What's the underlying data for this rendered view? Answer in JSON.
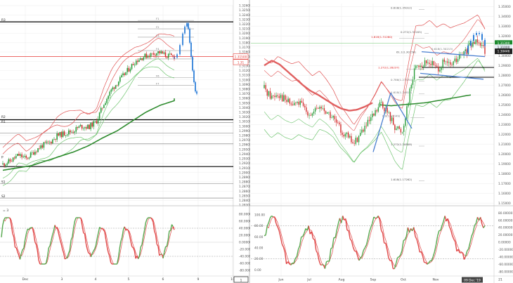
{
  "colors": {
    "pivot_line": "#000000",
    "fib_line": "#9e9e9e",
    "current_price_line": "#e53935",
    "bb_band": "#e05252",
    "bb_inner": "#6ec46e",
    "ma_slow": "#2e8b2e",
    "ma_red": "#e06060",
    "candle_up": "#2a9d3a",
    "candle_down": "#d32f2f",
    "proj_blue": "#2f7fd8",
    "wave_blue": "#4a7fd0",
    "stoch_green": "#56a84e",
    "stoch_red": "#e04848",
    "fib_label": "#5566aa",
    "fib_red": "#e01e1e",
    "price_tag_green": "#1d8a2e",
    "price_tag_black": "#222222",
    "price_tag_red": "#e53935",
    "grid": "#ececec"
  },
  "chart_data": [
    {
      "type": "candlestick",
      "title": "",
      "x_ticks": [
        "Dec",
        "3",
        "4",
        "5",
        "6",
        "9",
        "10"
      ],
      "y_ticks": [
        "1.32600",
        "1.32500",
        "1.32400",
        "1.32300",
        "1.32200",
        "1.32100",
        "1.32000",
        "1.31900",
        "1.31800",
        "1.31700",
        "1.31600",
        "1.31500",
        "1.31400",
        "1.31300",
        "1.31200",
        "1.31100",
        "1.31000",
        "1.30900",
        "1.30800",
        "1.30700",
        "1.30600",
        "1.30500",
        "1.30400",
        "1.30300",
        "1.30200",
        "1.30100",
        "1.30000",
        "1.29900",
        "1.29800",
        "1.29700",
        "1.29600",
        "1.29500",
        "1.29400",
        "1.29300",
        "1.29200",
        "1.29100",
        "1.29000",
        "1.28900",
        "1.28800",
        "1.28700",
        "1.28600",
        "1.28500",
        "1.28400",
        "1.28300"
      ],
      "ylim": [
        1.283,
        1.326
      ],
      "price_tags": [
        "1.31500",
        "1.31"
      ],
      "pivot_labels": [
        "R3",
        "R2",
        "R1",
        "P",
        "S1",
        "S2"
      ],
      "fib_labels": [
        "F1",
        "F2",
        "F3",
        "F4",
        "F5",
        "F6",
        "F7"
      ],
      "stochastic": {
        "y_ticks": [
          "80.00000",
          "60.00000",
          "40.00000",
          "20.00000",
          "0.00000",
          "-20.00000",
          "-40.00000",
          "-60.00000",
          "-80.00000"
        ],
        "ylim": [
          -90,
          90
        ],
        "label": "= 3"
      },
      "footer_tags": [
        "6",
        "1"
      ]
    },
    {
      "type": "candlestick",
      "title": "",
      "x_ticks": [
        "Jun",
        "Jul",
        "Aug",
        "Sep",
        "Oct",
        "Nov",
        "09 Dec '19",
        "21"
      ],
      "y_ticks": [
        "1.35000",
        "1.34000",
        "1.33000",
        "1.32000",
        "1.31000",
        "1.30000",
        "1.29000",
        "1.28000",
        "1.27000",
        "1.26000",
        "1.25000",
        "1.24000",
        "1.23000",
        "1.22000",
        "1.21000",
        "1.20000",
        "1.19000",
        "1.18000",
        "1.17000",
        "1.16000",
        "1.15000"
      ],
      "ylim": [
        1.148,
        1.353
      ],
      "price_tags": [
        "1.31300",
        "1.31000",
        "1.30446"
      ],
      "fib_labels": [
        "0.618(1.35012)",
        "0.272(1.32205)",
        "1.618(1.31260)",
        "61.1(1.30156)",
        "0.618(1.30213)",
        "1.272(1.28237)",
        "0.786(1.27370)",
        "1.618(1.24612)",
        "0.0(1.27049)",
        "1.272(1.20808)",
        "1.618(1.17262)"
      ],
      "stochastic": {
        "y_ticks": [
          "100.00",
          "80.00",
          "60.00",
          "40.00",
          "20.00",
          "0.00"
        ],
        "right_ticks": [
          "80.00000",
          "60.00000",
          "40.00000",
          "20.00000",
          "0.00000",
          "-20.00000",
          "-40.00000",
          "-60.00000",
          "-80.00000"
        ],
        "ylim": [
          -10,
          110
        ]
      }
    }
  ]
}
